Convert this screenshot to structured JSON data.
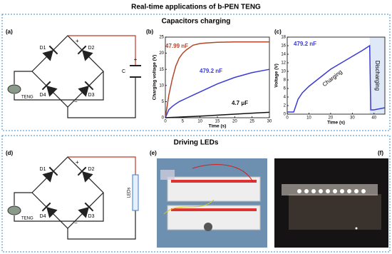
{
  "title": "Real-time applications of b-PEN TENG",
  "sections": [
    {
      "title": "Capacitors charging"
    },
    {
      "title": "Driving LEDs"
    }
  ],
  "panels": {
    "a": {
      "label": "(a)",
      "diodes": [
        "D1",
        "D2",
        "D4",
        "D3"
      ],
      "plus": "+",
      "minus": "−",
      "cap_plus": "+",
      "load": "C",
      "source": "TENG"
    },
    "d": {
      "label": "(d)",
      "diodes": [
        "D1",
        "D2",
        "D4",
        "D3"
      ],
      "plus": "+",
      "minus": "−",
      "load": "LEDs",
      "source": "TENG"
    },
    "e": {
      "label": "(e)"
    },
    "f": {
      "label": "(f)"
    }
  },
  "chart_data": [
    {
      "type": "line",
      "panel_label": "(b)",
      "xlabel": "Time (s)",
      "ylabel": "Charging voltage (V)",
      "x": [
        0,
        1,
        2,
        3,
        4,
        5,
        6,
        8,
        10,
        12,
        15,
        20,
        25,
        30
      ],
      "series": [
        {
          "name": "47.99 nF",
          "color": "#b5462b",
          "values": [
            0,
            7,
            12,
            16,
            18.5,
            20,
            21,
            22.5,
            23,
            23.2,
            23.4,
            23.5,
            23.5,
            23.5
          ]
        },
        {
          "name": "479.2 nF",
          "color": "#3b3bd6",
          "values": [
            0,
            2.5,
            3.5,
            4.3,
            5,
            5.5,
            6,
            7,
            8,
            9,
            10.5,
            12.5,
            14,
            15
          ]
        },
        {
          "name": "4.7 μF",
          "color": "#111111",
          "values": [
            0,
            0.05,
            0.1,
            0.15,
            0.2,
            0.25,
            0.3,
            0.4,
            0.5,
            0.6,
            0.8,
            1.1,
            1.4,
            1.7
          ]
        }
      ],
      "xlim": [
        0,
        30
      ],
      "xticks": [
        0,
        5,
        10,
        15,
        20,
        25,
        30
      ],
      "ylim": [
        0,
        25
      ],
      "yticks": [
        0,
        5,
        10,
        15,
        20,
        25
      ]
    },
    {
      "type": "line",
      "panel_label": "(c)",
      "xlabel": "Time (s)",
      "ylabel": "Voltage (V)",
      "x": [
        0,
        3,
        4,
        5,
        7,
        10,
        15,
        20,
        25,
        30,
        35,
        38,
        38.5,
        40,
        45
      ],
      "series": [
        {
          "name": "479.2 nF",
          "color": "#3b3bd6",
          "values": [
            0.5,
            0.5,
            2,
            3.5,
            5,
            6.5,
            8.5,
            10.5,
            12,
            13.5,
            15,
            16,
            1,
            1,
            1.5
          ]
        }
      ],
      "annotations": [
        {
          "text": "Charging"
        },
        {
          "text": "Discharging",
          "xrange": [
            38,
            45
          ]
        }
      ],
      "xlim": [
        0,
        45
      ],
      "xticks": [
        0,
        10,
        20,
        30,
        40
      ],
      "ylim": [
        0,
        18
      ],
      "yticks": [
        0,
        2,
        4,
        6,
        8,
        10,
        12,
        14,
        16,
        18
      ]
    }
  ]
}
